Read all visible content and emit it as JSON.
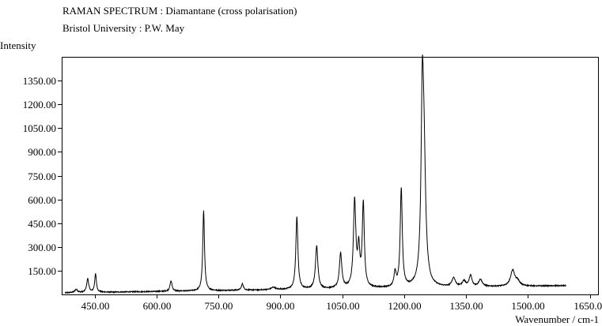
{
  "chart_data": {
    "type": "line",
    "title": "RAMAN SPECTRUM : Diamantane (cross polarisation)",
    "subtitle": "Bristol University : P.W. May",
    "ylabel": "Intensity",
    "xlabel": "Wavenumber / cm-1",
    "xlim": [
      370,
      1670
    ],
    "ylim": [
      0,
      1500
    ],
    "x_ticks": [
      450,
      600,
      750,
      900,
      1050,
      1200,
      1350,
      1500,
      1650
    ],
    "x_tick_labels": [
      "450.00",
      "600.00",
      "750.00",
      "900.00",
      "1050.00",
      "1200.00",
      "1350.00",
      "1500.00",
      "1650.00"
    ],
    "y_ticks": [
      150,
      300,
      450,
      600,
      750,
      900,
      1050,
      1200,
      1350
    ],
    "y_tick_labels": [
      "150.00",
      "300.00",
      "450.00",
      "600.00",
      "750.00",
      "900.00",
      "1050.00",
      "1200.00",
      "1350.00"
    ],
    "grid": false,
    "baseline": {
      "x_start": 378,
      "x_end": 1592,
      "start_value": 10,
      "end_value": 55
    },
    "peaks": [
      {
        "x": 405,
        "height": 20,
        "width": 4
      },
      {
        "x": 433,
        "height": 85,
        "width": 3
      },
      {
        "x": 452,
        "height": 115,
        "width": 2.5
      },
      {
        "x": 635,
        "height": 65,
        "width": 3
      },
      {
        "x": 714,
        "height": 505,
        "width": 2.5
      },
      {
        "x": 808,
        "height": 40,
        "width": 3
      },
      {
        "x": 883,
        "height": 15,
        "width": 6
      },
      {
        "x": 940,
        "height": 455,
        "width": 3
      },
      {
        "x": 988,
        "height": 270,
        "width": 3.5
      },
      {
        "x": 1046,
        "height": 220,
        "width": 3.5
      },
      {
        "x": 1080,
        "height": 545,
        "width": 3.5
      },
      {
        "x": 1090,
        "height": 230,
        "width": 3
      },
      {
        "x": 1101,
        "height": 525,
        "width": 3
      },
      {
        "x": 1178,
        "height": 90,
        "width": 3
      },
      {
        "x": 1193,
        "height": 620,
        "width": 3
      },
      {
        "x": 1244,
        "height": 990,
        "width": 3.5
      },
      {
        "x": 1248,
        "height": 740,
        "width": 5
      },
      {
        "x": 1320,
        "height": 55,
        "width": 5
      },
      {
        "x": 1345,
        "height": 35,
        "width": 5
      },
      {
        "x": 1361,
        "height": 70,
        "width": 4
      },
      {
        "x": 1385,
        "height": 45,
        "width": 5
      },
      {
        "x": 1463,
        "height": 100,
        "width": 6
      },
      {
        "x": 1475,
        "height": 30,
        "width": 6
      }
    ]
  }
}
